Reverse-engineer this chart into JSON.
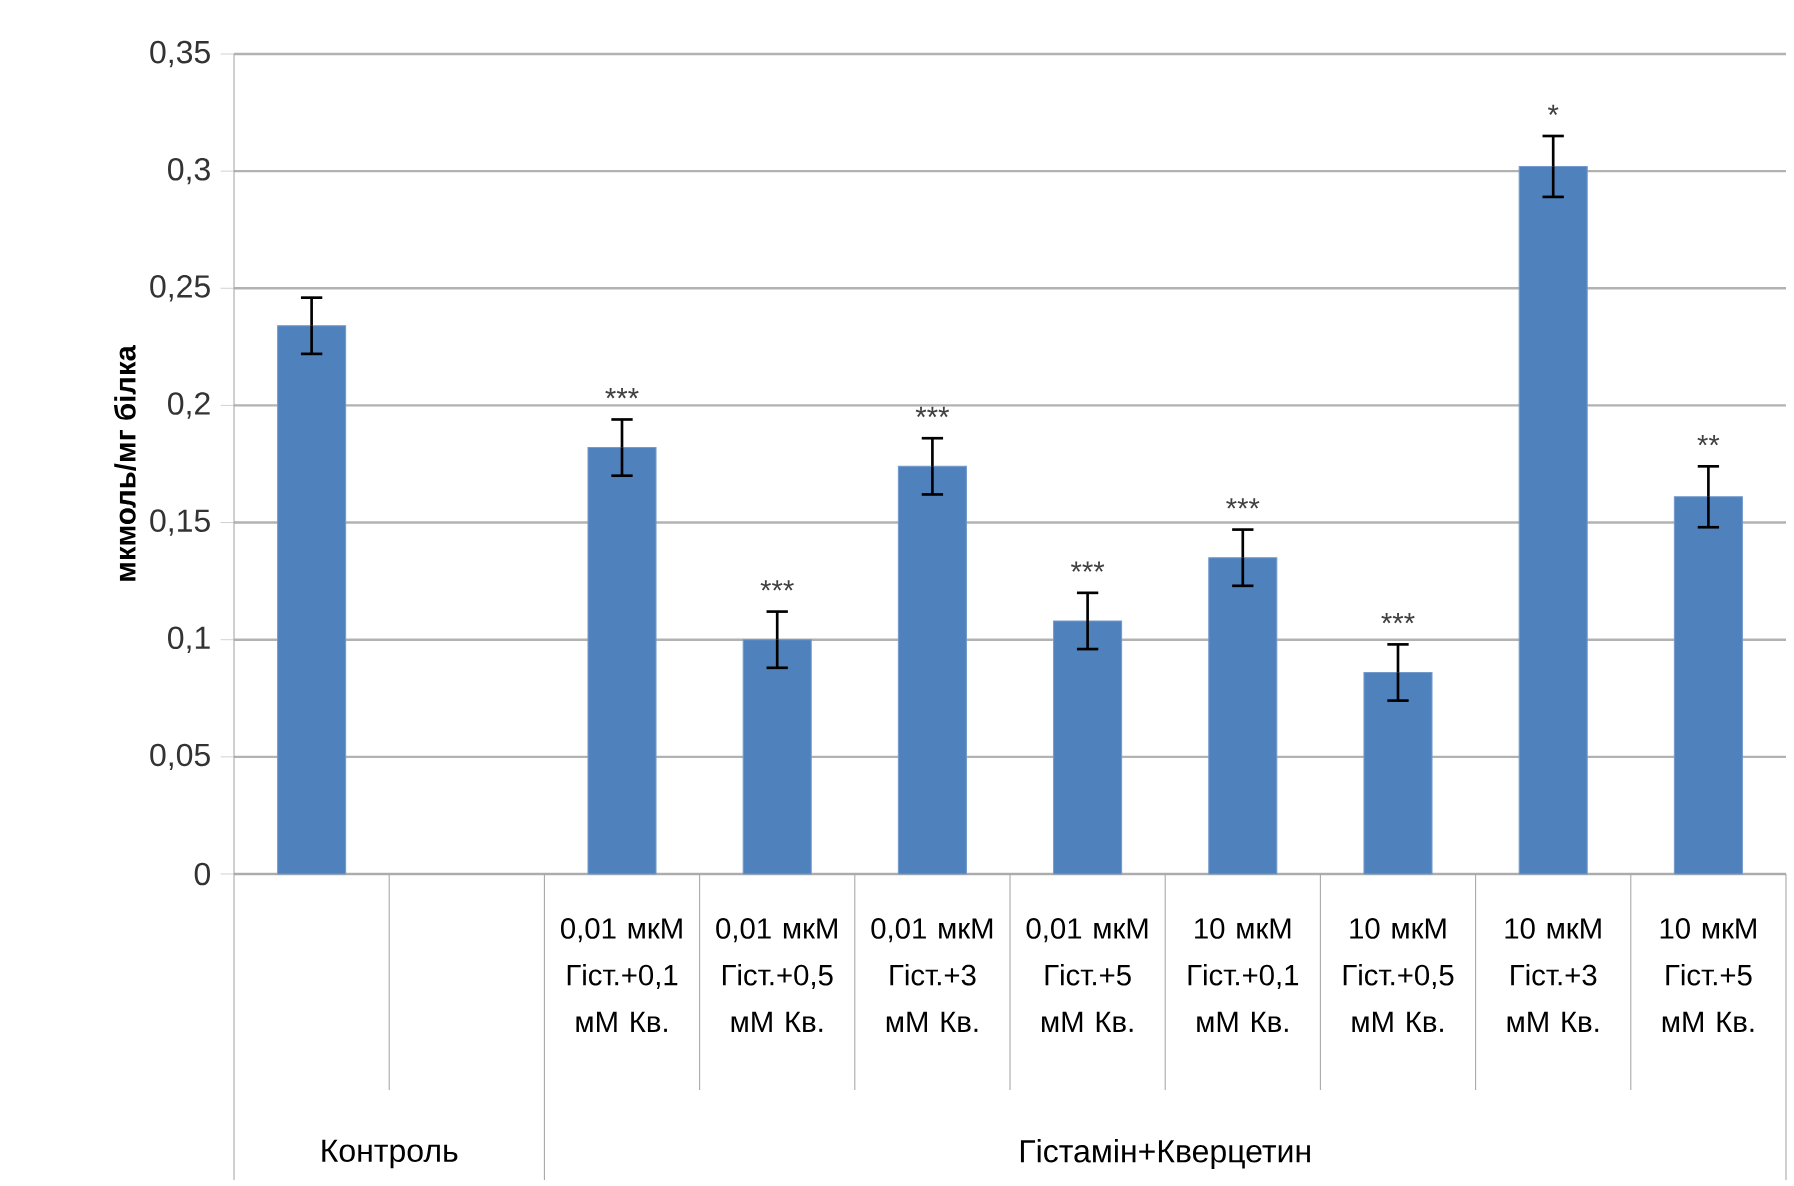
{
  "chart_data": {
    "type": "bar",
    "ylabel": "мкмоль/мг білка",
    "categories": [
      null,
      null,
      "0,01 мкМ Гіст.+0,1 мМ Кв.",
      "0,01 мкМ Гіст.+0,5 мМ Кв.",
      "0,01 мкМ Гіст.+3 мМ Кв.",
      "0,01 мкМ Гіст.+5 мМ Кв.",
      "10 мкМ Гіст.+0,1 мМ Кв.",
      "10 мкМ Гіст.+0,5 мМ Кв.",
      "10 мкМ Гіст.+3 мМ Кв.",
      "10 мкМ Гіст.+5 мМ Кв."
    ],
    "values": [
      0.234,
      null,
      0.182,
      0.1,
      0.174,
      0.108,
      0.135,
      0.086,
      0.302,
      0.161
    ],
    "errors": [
      0.012,
      null,
      0.012,
      0.012,
      0.012,
      0.012,
      0.012,
      0.012,
      0.013,
      0.013
    ],
    "color": "#4f81bd",
    "ylim": [
      0,
      0.35
    ],
    "yticks": [
      {
        "value": 0,
        "label": "0"
      },
      {
        "value": 0.05,
        "label": "0,05"
      },
      {
        "value": 0.1,
        "label": "0,1"
      },
      {
        "value": 0.15,
        "label": "0,15"
      },
      {
        "value": 0.2,
        "label": "0,2"
      },
      {
        "value": 0.25,
        "label": "0,25"
      },
      {
        "value": 0.3,
        "label": "0,3"
      },
      {
        "value": 0.35,
        "label": "0,35"
      }
    ],
    "grid": "y",
    "annotations": [
      "Контроль",
      "Гістамін+Кверцетин",
      {
        "text": "***",
        "x": "0,01 мкМ Гіст.+0,1 мМ Кв.",
        "y": 0.182
      },
      {
        "text": "***",
        "x": "0,01 мкМ Гіст.+0,5 мМ Кв.",
        "y": 0.1
      },
      {
        "text": "***",
        "x": "0,01 мкМ Гіст.+3 мМ Кв.",
        "y": 0.174
      },
      {
        "text": "***",
        "x": "0,01 мкМ Гіст.+5 мМ Кв.",
        "y": 0.108
      },
      {
        "text": "***",
        "x": "10 мкМ Гіст.+0,1 мМ Кв.",
        "y": 0.135
      },
      {
        "text": "***",
        "x": "10 мкМ Гіст.+0,5 мМ Кв.",
        "y": 0.086
      },
      {
        "text": "*",
        "x": "10 мкМ Гіст.+3 мМ Кв.",
        "y": 0.302
      },
      {
        "text": "**",
        "x": "10 мкМ Гіст.+5 мМ Кв.",
        "y": 0.161
      }
    ]
  }
}
